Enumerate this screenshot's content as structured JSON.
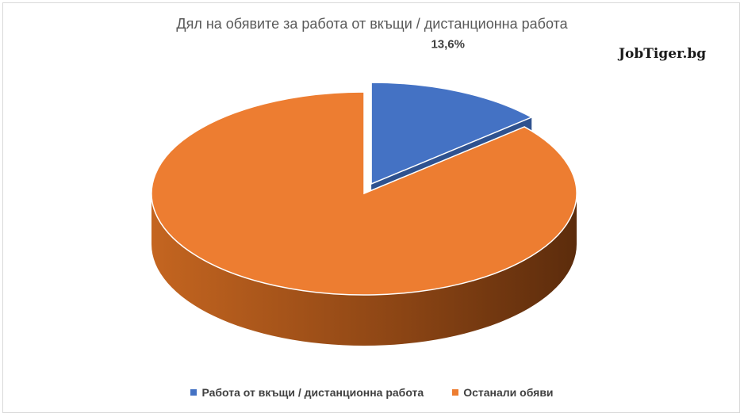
{
  "chart_data": {
    "type": "pie",
    "title": "Дял на обявите за работа от вкъщи / дистанционна работа",
    "slices": [
      {
        "name": "Работа от вкъщи / дистанционна работа",
        "value": 13.6,
        "color": "#4472c4",
        "label": "13,6%"
      },
      {
        "name": "Останали обяви",
        "value": 86.4,
        "color": "#ed7d31",
        "label": ""
      }
    ],
    "legend_position": "bottom",
    "three_d": true
  },
  "brand": "JobTiger.bg"
}
